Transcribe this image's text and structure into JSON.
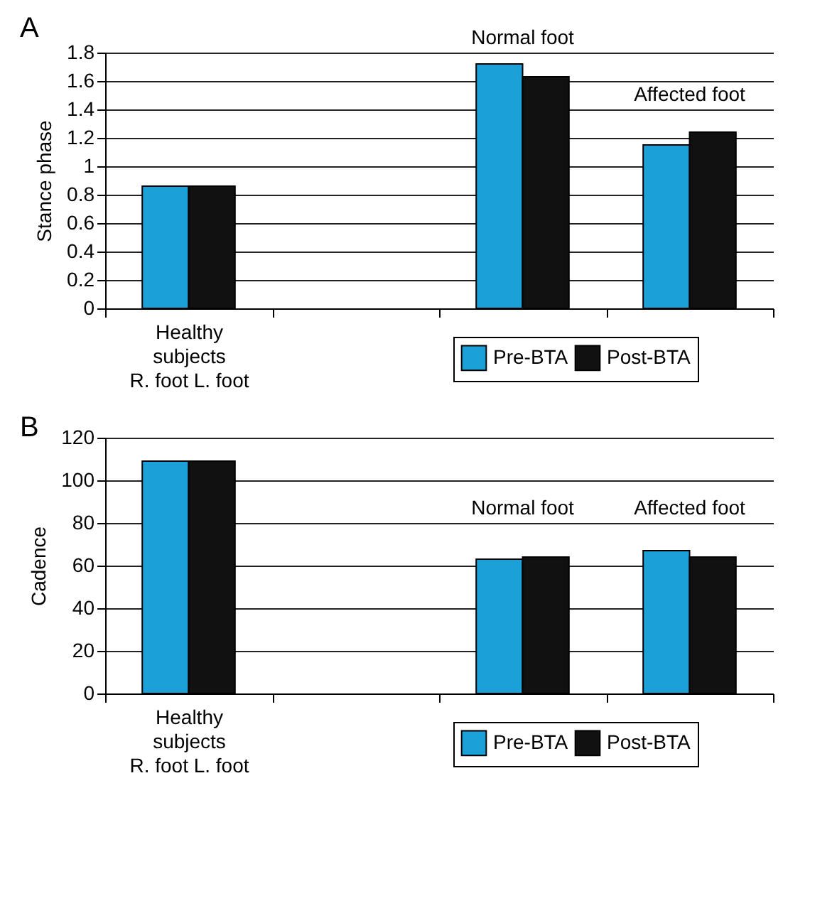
{
  "chart_data": [
    {
      "type": "bar",
      "title": "A",
      "ylabel": "Stance phase",
      "categories": [
        "Healthy\nsubjects\nR. foot L. foot",
        null,
        null,
        null
      ],
      "series": [
        {
          "name": "Pre-BTA",
          "color": "#1ba1d8",
          "values": [
            0.86,
            null,
            1.72,
            1.15
          ]
        },
        {
          "name": "Post-BTA",
          "color": "#111111",
          "values": [
            0.86,
            null,
            1.63,
            1.24
          ]
        }
      ],
      "ylim": [
        0,
        1.8
      ],
      "yticks": [
        0,
        0.2,
        0.4,
        0.6,
        0.8,
        1,
        1.2,
        1.4,
        1.6,
        1.8
      ],
      "grid": "y",
      "legend": "bottom right",
      "annotations": [
        "Normal foot",
        "Affected foot"
      ]
    },
    {
      "type": "bar",
      "title": "B",
      "ylabel": "Cadence",
      "categories": [
        "Healthy\nsubjects\nR. foot L. foot",
        null,
        null,
        null
      ],
      "series": [
        {
          "name": "Pre-BTA",
          "color": "#1ba1d8",
          "values": [
            109,
            null,
            63,
            67
          ]
        },
        {
          "name": "Post-BTA",
          "color": "#111111",
          "values": [
            109,
            null,
            64,
            64
          ]
        }
      ],
      "ylim": [
        0,
        120
      ],
      "yticks": [
        0,
        20,
        40,
        60,
        80,
        100,
        120
      ],
      "grid": "y",
      "legend": "bottom right",
      "annotations": [
        "Normal foot",
        "Affected foot"
      ]
    }
  ]
}
